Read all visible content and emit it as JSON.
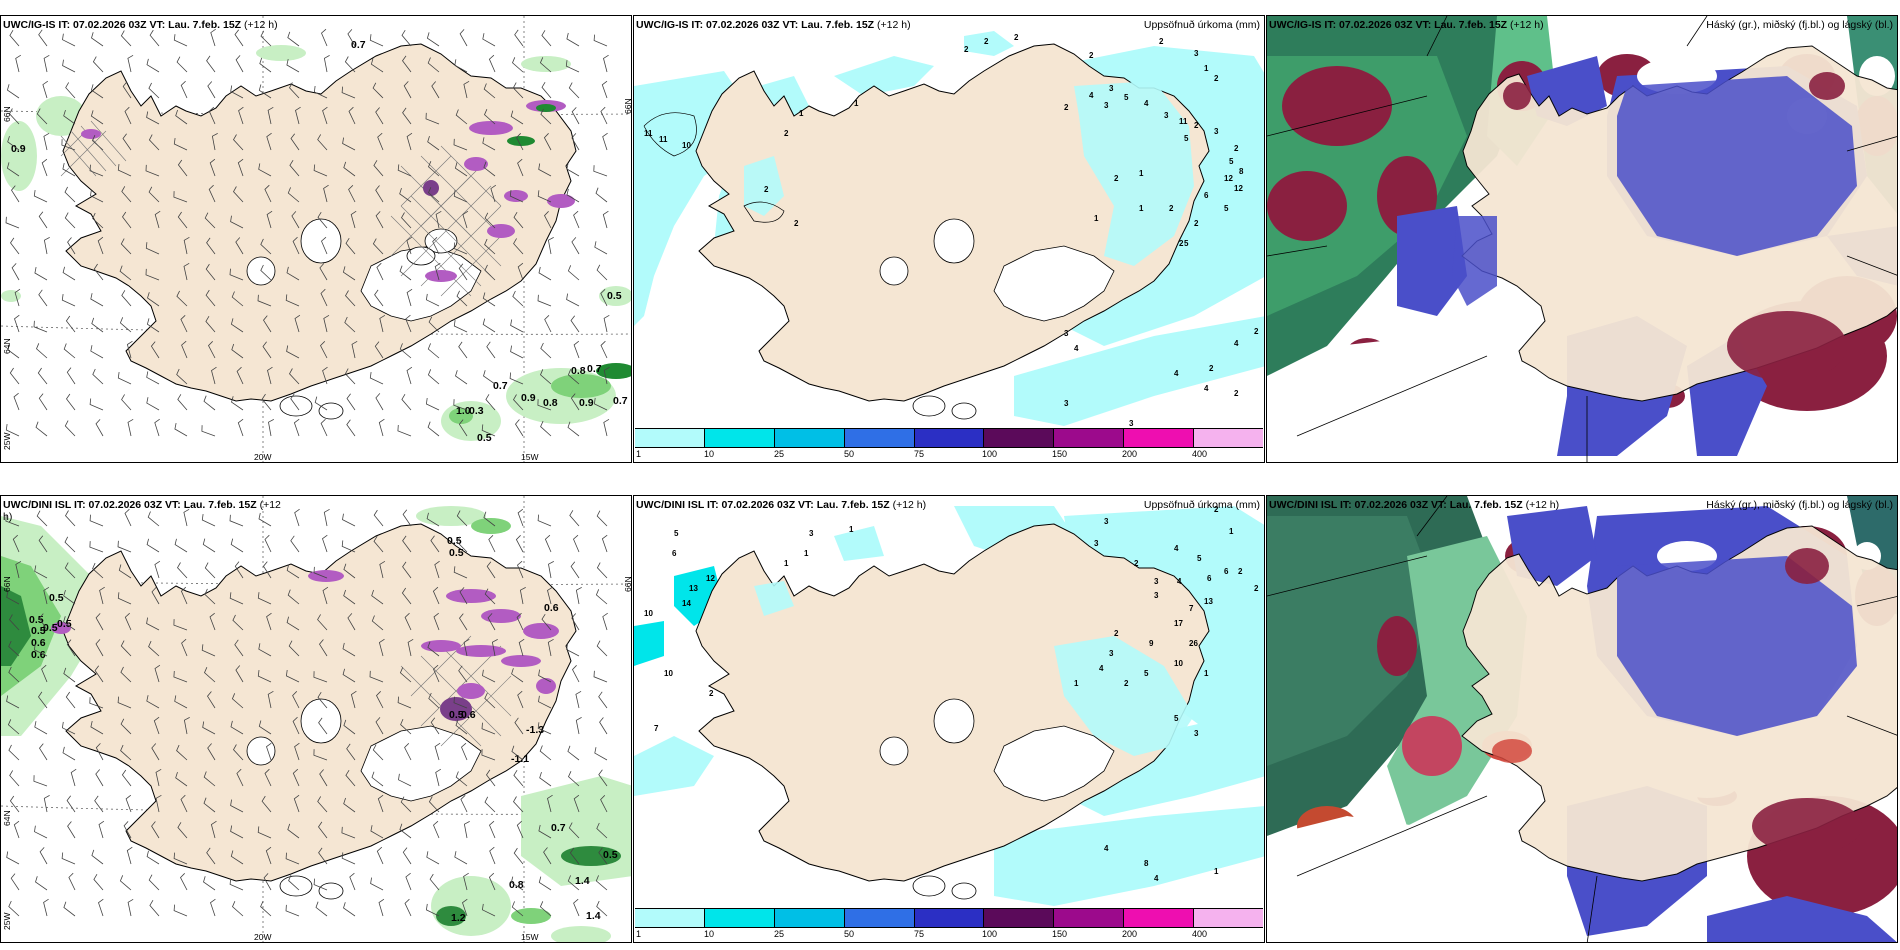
{
  "panels": [
    {
      "id": "p1",
      "header_left_plain": "UWC/IG-IS IT: 07.02.2026 03Z ",
      "header_vt_label": "VT:",
      "header_vt_value": " Lau. 7.feb. 15Z",
      "header_lead": " (+12 h)",
      "header_right": "",
      "type": "wind",
      "axis_labels": {
        "lon_left": "20W",
        "lon_right": "15W",
        "lat_top": "66N",
        "lat_mid": "64N",
        "lat_bot": "25W",
        "lat_right": "66N"
      },
      "values": [
        "0.7",
        "0.9",
        "0.5",
        "0.8",
        "0.7",
        "0.7",
        "0.9",
        "0.8",
        "0.9",
        "0.7",
        "1.0",
        "0.3",
        "0.5"
      ]
    },
    {
      "id": "p2",
      "header_left_plain": "UWC/IG-IS IT: 07.02.2026 03Z ",
      "header_vt_label": "VT:",
      "header_vt_value": " Lau. 7.feb. 15Z",
      "header_lead": " (+12 h)",
      "header_right": "Uppsöfnuð úrkoma (mm)",
      "type": "precip",
      "colorbar_labels": [
        "1",
        "10",
        "25",
        "50",
        "75",
        "100",
        "150",
        "200",
        "400"
      ],
      "colorbar_colors": [
        "#b2fbfb",
        "#00e5ea",
        "#00bfe6",
        "#2f6fe6",
        "#2b2fc4",
        "#5b0a5a",
        "#9c0a8c",
        "#ee0eb0",
        "#f5b2ee"
      ],
      "numbers": [
        "2",
        "2",
        "2",
        "2",
        "2",
        "3",
        "1",
        "2",
        "11",
        "11",
        "10",
        "1",
        "2",
        "2",
        "1",
        "2",
        "4",
        "3",
        "3",
        "5",
        "4",
        "3",
        "11",
        "2",
        "3",
        "5",
        "2",
        "5",
        "8",
        "12",
        "12",
        "6",
        "5",
        "1",
        "2",
        "1",
        "2",
        "2",
        "1",
        "3",
        "4",
        "2",
        "5",
        "2",
        "2",
        "3",
        "4",
        "4",
        "2",
        "3",
        "2",
        "4",
        "2"
      ]
    },
    {
      "id": "p3",
      "header_left_plain": "UWC/IG-IS IT: 07.02.2026 03Z ",
      "header_vt_label": "VT:",
      "header_vt_value": " Lau. 7.feb. 15Z",
      "header_lead": " (+12 h)",
      "header_right": "Háský (gr.), miðský (fj.bl.) og lágský (bl.)",
      "type": "cloud"
    },
    {
      "id": "p4",
      "header_left_plain": "UWC/DINI ISL IT: 07.02.2026 03Z ",
      "header_vt_label": "VT:",
      "header_vt_value": " Lau. 7.feb. 15Z",
      "header_lead": " (+12",
      "header_lead2": "h)",
      "header_right": "",
      "type": "wind",
      "axis_labels": {
        "lon_left": "20W",
        "lon_right": "15W",
        "lat_top": "66N",
        "lat_mid": "64N",
        "lat_bot": "25W",
        "lat_right": "66N"
      },
      "values": [
        "0.5",
        "0.5",
        "0.5",
        "0.5",
        "0.5",
        "0.6",
        "0.6",
        "0.5",
        "0.5",
        "0.6",
        "-1.1",
        "-1.3",
        "0.7",
        "0.5",
        "0.8",
        "1.4",
        "1.2",
        "1.4",
        "0.5",
        "0.6"
      ]
    },
    {
      "id": "p5",
      "header_left_plain": "UWC/DINI ISL IT: 07.02.2026 03Z ",
      "header_vt_label": "VT:",
      "header_vt_value": " Lau. 7.feb. 15Z",
      "header_lead": " (+12 h)",
      "header_right": "Uppsöfnuð úrkoma (mm)",
      "type": "precip",
      "colorbar_labels": [
        "1",
        "10",
        "25",
        "50",
        "75",
        "100",
        "150",
        "200",
        "400"
      ],
      "colorbar_colors": [
        "#b2fbfb",
        "#00e5ea",
        "#00bfe6",
        "#2f6fe6",
        "#2b2fc4",
        "#5b0a5a",
        "#9c0a8c",
        "#ee0eb0",
        "#f5b2ee"
      ],
      "numbers": [
        "3",
        "2",
        "1",
        "5",
        "6",
        "3",
        "1",
        "13",
        "12",
        "14",
        "10",
        "10",
        "7",
        "2",
        "1",
        "1",
        "3",
        "2",
        "4",
        "5",
        "6",
        "6",
        "4",
        "3",
        "2",
        "2",
        "3",
        "7",
        "13",
        "9",
        "17",
        "26",
        "10",
        "5",
        "2",
        "1",
        "2",
        "3",
        "4",
        "1",
        "5",
        "3",
        "4",
        "8",
        "4",
        "1",
        "1",
        "2",
        "1",
        "2"
      ]
    },
    {
      "id": "p6",
      "header_left_plain": "UWC/DINI ISL IT: 07.02.2026 03Z ",
      "header_vt_label": "VT:",
      "header_vt_value": " Lau. 7.feb. 15Z",
      "header_lead": " (+12 h)",
      "header_right": "Háský (gr.), miðský (fj.bl.) og lágský (bl.)",
      "type": "cloud"
    }
  ],
  "colors": {
    "land": "#f5e6d3",
    "ice": "#ffffff",
    "coast": "#000000",
    "sea": "#ffffff",
    "wind_green_light": "#c8efc4",
    "wind_green_mid": "#7fd27a",
    "wind_green_dark": "#1f8a32",
    "wind_purple": "#b25cc2",
    "cloud_high_green": "#2e7d5b",
    "cloud_mid_blue": "#4a4fc9",
    "cloud_low_red": "#8a2040"
  }
}
